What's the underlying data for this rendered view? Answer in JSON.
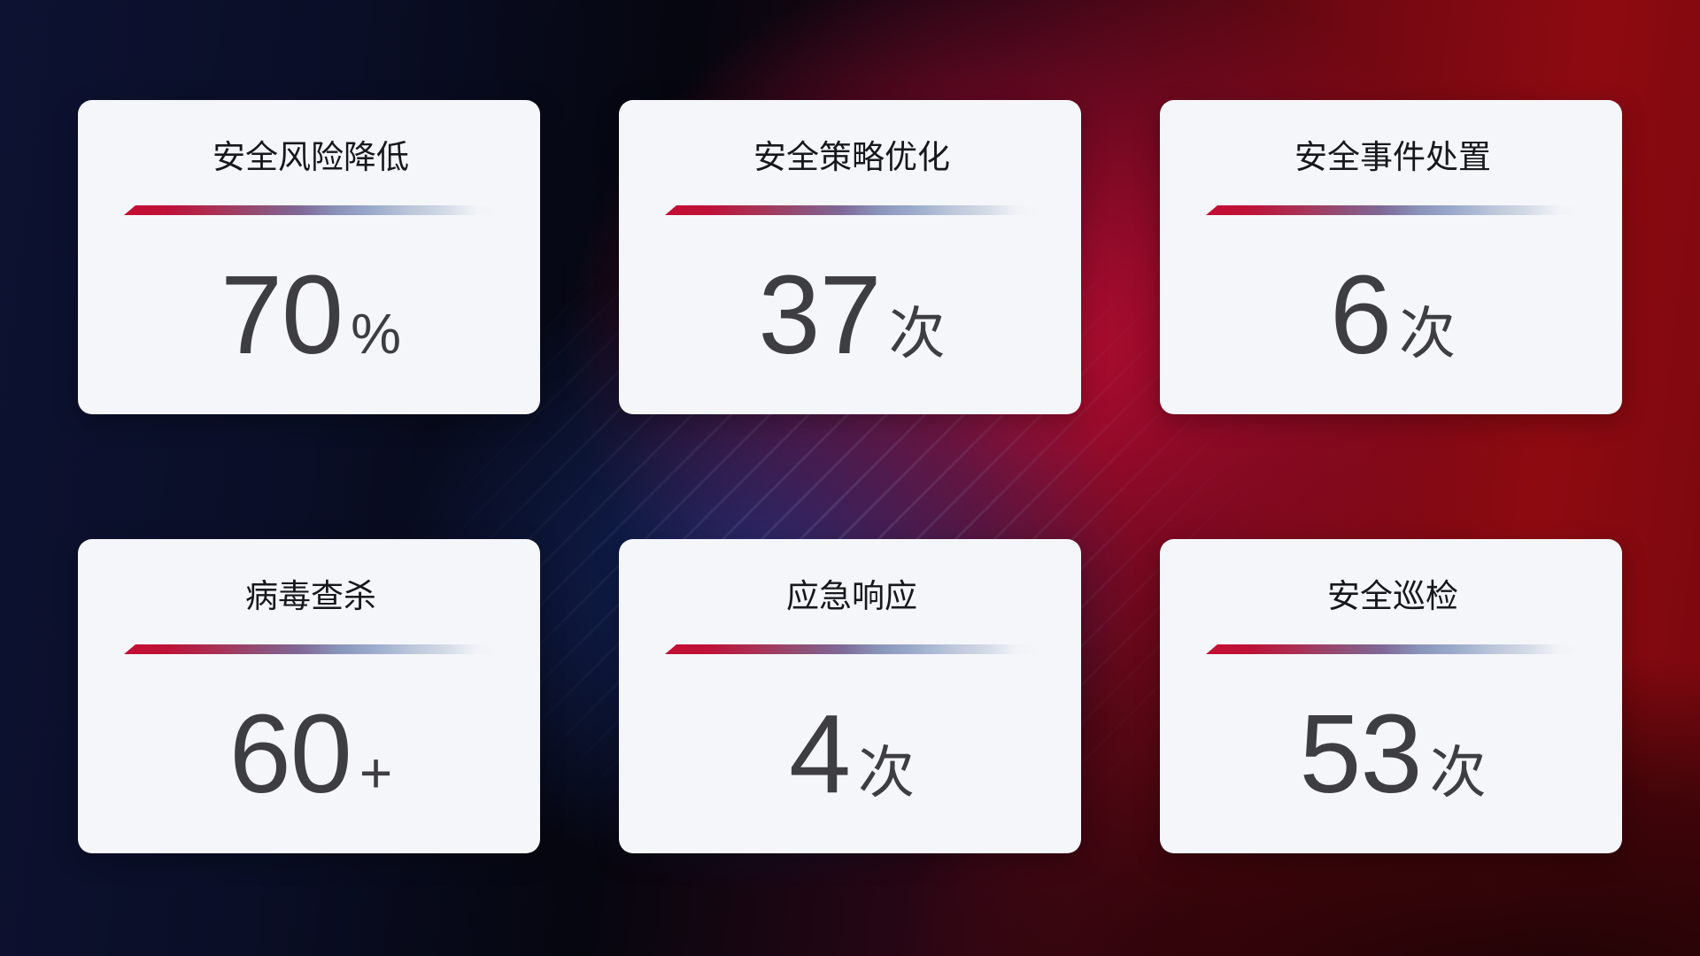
{
  "cards": [
    {
      "title": "安全风险降低",
      "value": "70",
      "unit": "%"
    },
    {
      "title": "安全策略优化",
      "value": "37",
      "unit": "次"
    },
    {
      "title": "安全事件处置",
      "value": "6",
      "unit": "次"
    },
    {
      "title": "病毒查杀",
      "value": "60",
      "unit": "+"
    },
    {
      "title": "应急响应",
      "value": "4",
      "unit": "次"
    },
    {
      "title": "安全巡检",
      "value": "53",
      "unit": "次"
    }
  ],
  "theme": {
    "card_bg": "#f5f6fa",
    "title_color": "#17181c",
    "number_color": "#3d3d42",
    "divider_red": "#c40e31",
    "divider_blue": "#9aa9cb",
    "bg_navy": "#0d1232",
    "bg_black": "#06070f",
    "bg_crimson": "#b30d34",
    "bg_dark_red": "#8e0a11"
  }
}
